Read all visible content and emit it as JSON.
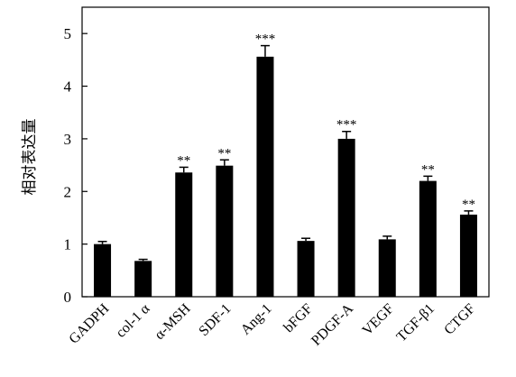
{
  "chart_data": {
    "type": "bar",
    "title": "",
    "xlabel": "",
    "ylabel": "相对表达量",
    "ylim": [
      0,
      5.5
    ],
    "yticks": [
      0,
      1,
      2,
      3,
      4,
      5
    ],
    "categories": [
      "GADPH",
      "col-1 α",
      "α-MSH",
      "SDF-1",
      "Ang-1",
      "bFGF",
      "PDGF-A",
      "VEGF",
      "TGF-β1",
      "CTGF"
    ],
    "values": [
      1.0,
      0.68,
      2.36,
      2.49,
      4.56,
      1.06,
      3.0,
      1.09,
      2.2,
      1.56
    ],
    "errors": [
      0.05,
      0.03,
      0.1,
      0.11,
      0.21,
      0.05,
      0.14,
      0.06,
      0.09,
      0.07
    ],
    "significance": [
      "",
      "",
      "**",
      "**",
      "***",
      "",
      "***",
      "",
      "**",
      "**"
    ],
    "bar_color": "#000000",
    "grid": false,
    "legend": "none"
  }
}
